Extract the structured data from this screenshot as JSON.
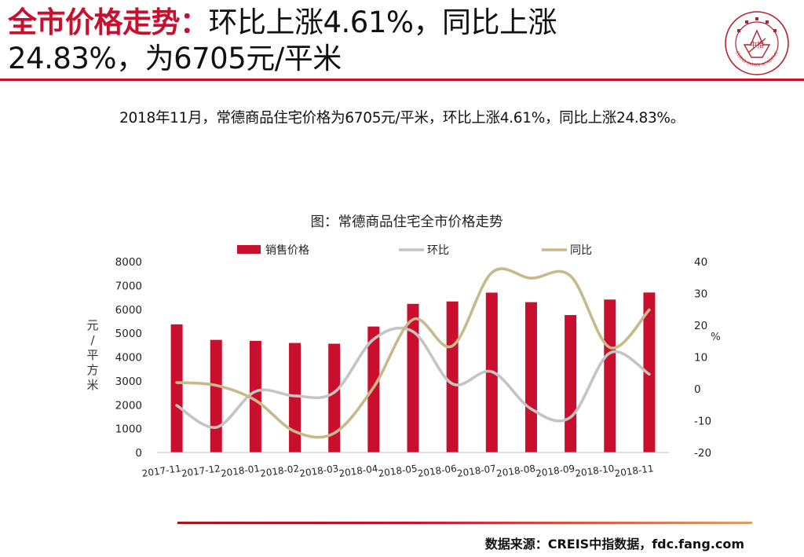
{
  "header": {
    "title_accent": "全市价格走势：",
    "title_rest": "环比上涨4.61%，同比上涨24.83%，为6705元/平米"
  },
  "logo": {
    "icon": "china-index-academy-seal",
    "text": "CHINA INDEX ACADEMY",
    "center": "中指"
  },
  "summary": "2018年11月，常德商品住宅价格为6705元/平米，环比上涨4.61%，同比上涨24.83%。",
  "chart_data": {
    "type": "bar",
    "title": "图：常德商品住宅全市价格走势",
    "categories": [
      "2017-11",
      "2017-12",
      "2018-01",
      "2018-02",
      "2018-03",
      "2018-04",
      "2018-05",
      "2018-06",
      "2018-07",
      "2018-08",
      "2018-09",
      "2018-10",
      "2018-11"
    ],
    "series": [
      {
        "name": "销售价格",
        "type": "bar",
        "axis": "left",
        "color": "#c8102e",
        "values": [
          5370,
          4720,
          4680,
          4590,
          4560,
          5280,
          6230,
          6330,
          6700,
          6300,
          5760,
          6410,
          6705
        ]
      },
      {
        "name": "环比",
        "type": "line",
        "axis": "right",
        "color": "#c4c4c4",
        "values": [
          -5.2,
          -12.1,
          -0.8,
          -2.2,
          -1.1,
          15.6,
          18.0,
          1.6,
          5.4,
          -6.3,
          -8.9,
          11.3,
          4.61
        ]
      },
      {
        "name": "同比",
        "type": "line",
        "axis": "right",
        "color": "#c8b98a",
        "values": [
          2.0,
          1.1,
          -3.6,
          -13.4,
          -13.9,
          0.5,
          21.8,
          13.5,
          36.5,
          34.8,
          35.5,
          13.0,
          24.83
        ]
      }
    ],
    "y_left": {
      "label": "元/平方米",
      "ylim": [
        0,
        8000
      ],
      "ticks": [
        0,
        1000,
        2000,
        3000,
        4000,
        5000,
        6000,
        7000,
        8000
      ]
    },
    "y_right": {
      "label": "%",
      "ylim": [
        -20,
        40
      ],
      "ticks": [
        -20,
        -10,
        0,
        10,
        20,
        30,
        40
      ]
    },
    "legend": "top",
    "grid": false
  },
  "source": "数据来源：CREIS中指数据，fdc.fang.com"
}
